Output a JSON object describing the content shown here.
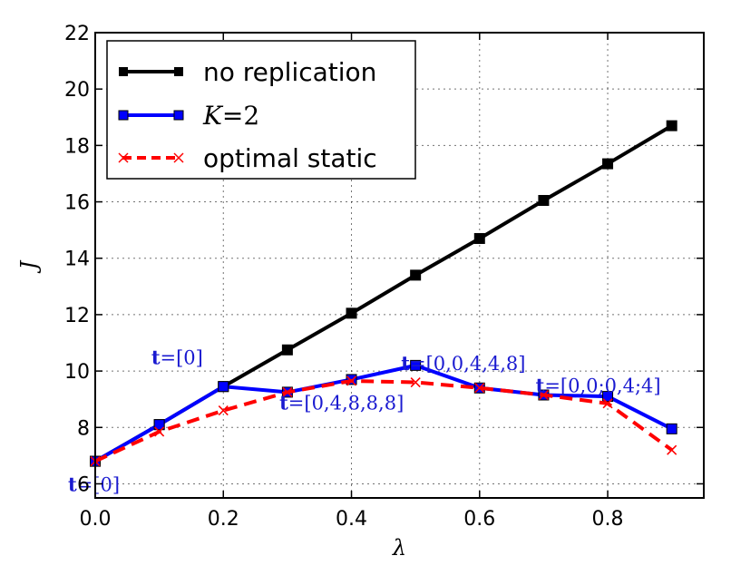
{
  "chart_data": {
    "type": "line",
    "xlabel": "λ",
    "ylabel": "J",
    "xlim": [
      0.0,
      0.95
    ],
    "ylim": [
      5.5,
      22
    ],
    "xticks": [
      "0.0",
      "0.2",
      "0.4",
      "0.6",
      "0.8"
    ],
    "xtick_values": [
      0.0,
      0.2,
      0.4,
      0.6,
      0.8
    ],
    "yticks": [
      "6",
      "8",
      "10",
      "12",
      "14",
      "16",
      "18",
      "20",
      "22"
    ],
    "ytick_values": [
      6,
      8,
      10,
      12,
      14,
      16,
      18,
      20,
      22
    ],
    "grid": true,
    "legend_position": "top-left",
    "x": [
      0.0,
      0.1,
      0.2,
      0.3,
      0.4,
      0.5,
      0.6,
      0.7,
      0.8,
      0.9
    ],
    "series": [
      {
        "name": "no replication",
        "color": "#000000",
        "marker": "square",
        "linestyle": "solid",
        "x": [
          0.0,
          0.1,
          0.2,
          0.3,
          0.4,
          0.5,
          0.6,
          0.7,
          0.8,
          0.9
        ],
        "values": [
          6.8,
          8.1,
          9.45,
          10.75,
          12.05,
          13.4,
          14.7,
          16.05,
          17.35,
          18.7
        ]
      },
      {
        "name": "K=2",
        "name_prefix": "K",
        "name_suffix": "=2",
        "color": "#0000ff",
        "marker": "square",
        "linestyle": "solid",
        "x": [
          0.0,
          0.1,
          0.2,
          0.3,
          0.4,
          0.5,
          0.6,
          0.7,
          0.8,
          0.9
        ],
        "values": [
          6.8,
          8.1,
          9.45,
          9.25,
          9.7,
          10.2,
          9.4,
          9.15,
          9.1,
          7.95
        ]
      },
      {
        "name": "optimal static",
        "color": "#ff0000",
        "marker": "x",
        "linestyle": "dashed",
        "x": [
          0.0,
          0.1,
          0.2,
          0.3,
          0.4,
          0.5,
          0.6,
          0.7,
          0.8,
          0.9
        ],
        "values": [
          6.8,
          7.85,
          8.6,
          9.25,
          9.65,
          9.6,
          9.4,
          9.15,
          8.85,
          7.2
        ]
      }
    ],
    "annotations": [
      {
        "bold": "t",
        "text": "=[0]",
        "x": 0.0,
        "y": 6.0
      },
      {
        "bold": "t",
        "text": "=[0]",
        "x": 0.13,
        "y": 10.5
      },
      {
        "bold": "t",
        "text": "=[0,4,8,8,8]",
        "x": 0.33,
        "y": 8.9
      },
      {
        "bold": "t",
        "text": "=[0,0,4,4,8]",
        "x": 0.52,
        "y": 10.3
      },
      {
        "bold": "t",
        "text": "=[0,0;0,4;4]",
        "x": 0.73,
        "y": 9.5
      }
    ]
  }
}
